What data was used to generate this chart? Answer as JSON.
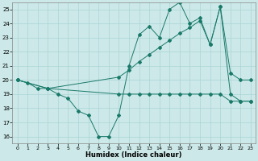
{
  "xlabel": "Humidex (Indice chaleur)",
  "xlim": [
    -0.5,
    23.5
  ],
  "ylim": [
    15.5,
    25.5
  ],
  "xticks": [
    0,
    1,
    2,
    3,
    4,
    5,
    6,
    7,
    8,
    9,
    10,
    11,
    12,
    13,
    14,
    15,
    16,
    17,
    18,
    19,
    20,
    21,
    22,
    23
  ],
  "yticks": [
    16,
    17,
    18,
    19,
    20,
    21,
    22,
    23,
    24,
    25
  ],
  "bg_color": "#cce8e8",
  "line_color": "#1a7a6a",
  "series": [
    {
      "x": [
        0,
        1,
        2,
        3,
        4,
        5,
        6,
        7,
        8,
        9,
        10,
        11,
        12,
        13,
        14,
        15,
        16,
        17,
        18,
        19,
        20,
        21,
        22,
        23
      ],
      "y": [
        20,
        19.8,
        19.4,
        19.4,
        19.0,
        18.7,
        17.8,
        17.5,
        16.0,
        16.0,
        17.5,
        21.0,
        23.2,
        23.8,
        23.0,
        25.0,
        25.5,
        24.0,
        24.4,
        22.5,
        25.2,
        19.0,
        18.5,
        18.5
      ]
    },
    {
      "x": [
        0,
        3,
        10,
        11,
        12,
        13,
        14,
        15,
        16,
        17,
        18,
        19,
        20,
        21,
        22,
        23
      ],
      "y": [
        20,
        19.4,
        19.0,
        19.0,
        19.0,
        19.0,
        19.0,
        19.0,
        19.0,
        19.0,
        19.0,
        19.0,
        19.0,
        18.5,
        18.5,
        18.5
      ]
    },
    {
      "x": [
        0,
        3,
        10,
        11,
        12,
        13,
        14,
        15,
        16,
        17,
        18,
        19,
        20,
        21,
        22,
        23
      ],
      "y": [
        20,
        19.4,
        20.2,
        20.7,
        21.3,
        21.8,
        22.3,
        22.8,
        23.3,
        23.7,
        24.2,
        22.5,
        25.2,
        20.5,
        20.0,
        20.0
      ]
    }
  ]
}
